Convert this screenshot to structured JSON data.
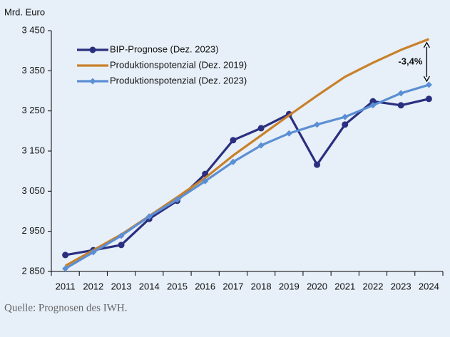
{
  "chart_data": {
    "type": "line",
    "y_label": "Mrd. Euro",
    "categories": [
      "2011",
      "2012",
      "2013",
      "2014",
      "2015",
      "2016",
      "2017",
      "2018",
      "2019",
      "2020",
      "2021",
      "2022",
      "2023",
      "2024"
    ],
    "series": [
      {
        "name": "BIP-Prognose (Dez. 2023)",
        "color": "#2b2f7f",
        "marker": "circle",
        "values": [
          2891,
          2903,
          2916,
          2981,
          3026,
          3093,
          3177,
          3207,
          3242,
          3116,
          3216,
          3274,
          3264,
          3280
        ]
      },
      {
        "name": "Produktionspotenzial (Dez. 2019)",
        "color": "#c8812a",
        "marker": "none",
        "values": [
          2864,
          2903,
          2942,
          2988,
          3035,
          3083,
          3139,
          3189,
          3239,
          3288,
          3335,
          3370,
          3402,
          3429
        ]
      },
      {
        "name": "Produktionspotenzial (Dez. 2023)",
        "color": "#5b8fd4",
        "marker": "diamond",
        "values": [
          2857,
          2898,
          2939,
          2987,
          3029,
          3075,
          3123,
          3164,
          3194,
          3216,
          3235,
          3264,
          3294,
          3315
        ]
      }
    ],
    "ylim": [
      2850,
      3450
    ],
    "yticks": [
      {
        "value": 2850,
        "label": "2 850"
      },
      {
        "value": 2950,
        "label": "2 950"
      },
      {
        "value": 3050,
        "label": "3 050"
      },
      {
        "value": 3150,
        "label": "3 150"
      },
      {
        "value": 3250,
        "label": "3 250"
      },
      {
        "value": 3350,
        "label": "3 350"
      },
      {
        "value": 3450,
        "label": "3 450"
      }
    ],
    "annotation": "-3,4%",
    "legend": "top-left"
  },
  "source": "Quelle: Prognosen des IWH."
}
